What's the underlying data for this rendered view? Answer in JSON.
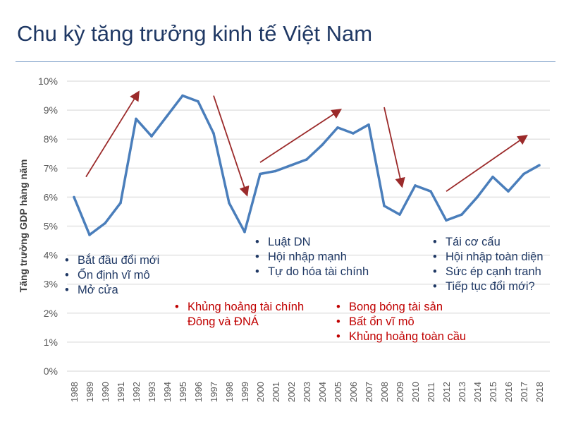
{
  "title": "Chu kỳ tăng trưởng kinh tế Việt Nam",
  "chart_data": {
    "type": "line",
    "title": "",
    "xlabel": "",
    "ylabel": "Tăng trưởng GDP hàng năm",
    "ylim": [
      0,
      10
    ],
    "y_ticks": [
      "0%",
      "1%",
      "2%",
      "3%",
      "4%",
      "5%",
      "6%",
      "7%",
      "8%",
      "9%",
      "10%"
    ],
    "grid": true,
    "categories": [
      "1988",
      "1989",
      "1990",
      "1991",
      "1992",
      "1993",
      "1994",
      "1995",
      "1996",
      "1997",
      "1998",
      "1999",
      "2000",
      "2001",
      "2002",
      "2003",
      "2004",
      "2005",
      "2006",
      "2007",
      "2008",
      "2009",
      "2010",
      "2011",
      "2012",
      "2013",
      "2014",
      "2015",
      "2016",
      "2017",
      "2018"
    ],
    "values": [
      6.0,
      4.7,
      5.1,
      5.8,
      8.7,
      8.1,
      8.8,
      9.5,
      9.3,
      8.2,
      5.8,
      4.8,
      6.8,
      6.9,
      7.1,
      7.3,
      7.8,
      8.4,
      8.2,
      8.5,
      5.7,
      5.4,
      6.4,
      6.2,
      5.2,
      5.4,
      6.0,
      6.7,
      6.2,
      6.8,
      7.1
    ],
    "line_color": "#4a7ebb",
    "arrow_color": "#9b2a2a",
    "trend_arrows": [
      {
        "from": [
          "1989",
          6.7
        ],
        "to": [
          "1992",
          9.6
        ]
      },
      {
        "from": [
          "1997",
          9.5
        ],
        "to": [
          "1999",
          6.1
        ]
      },
      {
        "from": [
          "2000",
          7.2
        ],
        "to": [
          "2005",
          9.0
        ]
      },
      {
        "from": [
          "2008",
          9.1
        ],
        "to": [
          "2009",
          6.4
        ]
      },
      {
        "from": [
          "2012",
          6.2
        ],
        "to": [
          "2017",
          8.1
        ]
      }
    ],
    "annotations": [
      {
        "color": "#1f3864",
        "items": [
          "Bắt đầu đổi mới",
          "Ổn định vĩ mô",
          "Mở cửa"
        ]
      },
      {
        "color": "#1f3864",
        "items": [
          "Luật DN",
          "Hội nhập mạnh",
          "Tự do hóa tài chính"
        ]
      },
      {
        "color": "#1f3864",
        "items": [
          "Tái cơ cấu",
          "Hội nhập toàn diện",
          "Sức ép cạnh tranh",
          "Tiếp tục đổi mới?"
        ]
      },
      {
        "color": "#c00000",
        "items": [
          "Khủng hoảng tài chính Đông và ĐNÁ"
        ]
      },
      {
        "color": "#c00000",
        "items": [
          "Bong bóng tài sản",
          "Bất ổn vĩ mô",
          "Khủng hoảng toàn cầu"
        ]
      }
    ]
  }
}
